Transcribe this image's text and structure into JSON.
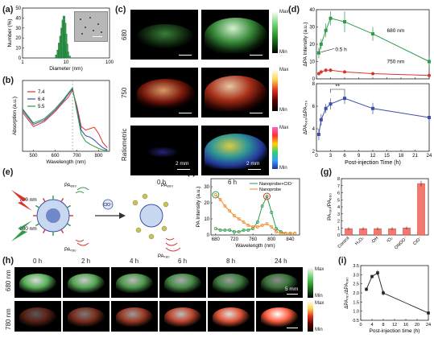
{
  "panels": {
    "a": {
      "letter": "(a)",
      "ylabel": "Number (%)",
      "xlabel": "Diameter (nm)",
      "yticks": [
        "0",
        "10",
        "20",
        "30",
        "40",
        "50"
      ],
      "xticks": [
        "1",
        "10",
        "100"
      ]
    },
    "b": {
      "letter": "(b)",
      "ylabel": "Absorption (a.u.)",
      "xlabel": "Wavelength (nm)",
      "xticks": [
        "500",
        "600",
        "700",
        "800"
      ],
      "legend": [
        "7.4",
        "6.4",
        "5.5"
      ]
    },
    "c": {
      "letter": "(c)",
      "rows": [
        "680",
        "750",
        "Ratiometric"
      ],
      "cols": [
        "0 h",
        "6 h"
      ],
      "scale": "2 mm",
      "max": "Max",
      "min": "Min"
    },
    "d": {
      "letter": "(d)",
      "ylabel_top": "ΔPA Intensity (a.u.)",
      "ylabel_bot": "ΔPA₆₈₀/ΔPA₇₅₀",
      "xlabel": "Post-injection Time (h)",
      "label_680": "680 nm",
      "label_750": "750 nm",
      "label_05": "0.5 h",
      "sig": "**",
      "xticks": [
        "0",
        "3",
        "6",
        "9",
        "12",
        "15",
        "18",
        "21",
        "24"
      ],
      "yticks_top": [
        "0",
        "10",
        "20",
        "30",
        "40"
      ],
      "yticks_bot": [
        "2",
        "4",
        "6",
        "8"
      ]
    },
    "e": {
      "letter": "(e)",
      "l780": "780 nm",
      "l680": "680 nm",
      "pa680_top": "PA₆₈₀",
      "pa780_left": "PA₇₈₀",
      "pa680_bot": "PA₆₈₀",
      "pa780_right": "PA₇₈₀",
      "clo": "ClO⁻"
    },
    "f": {
      "letter": "(f)",
      "ylabel": "PA Intensity (a.u.)",
      "xlabel": "Wavelength (nm)",
      "legend": [
        "Nanoprobe+ClO⁻",
        "Nanoprobe"
      ],
      "xticks": [
        "680",
        "720",
        "760",
        "800",
        "840"
      ],
      "yticks": [
        "0",
        "10",
        "20",
        "30"
      ]
    },
    "g": {
      "letter": "(g)",
      "ylabel": "PA₇₈₀/PA₆₈₀",
      "categories": [
        "Control",
        "H₂O₂",
        "·OH",
        "¹O₂",
        "ONOO⁻",
        "ClO⁻"
      ],
      "yticks": [
        "0",
        "1",
        "2",
        "3",
        "4",
        "5",
        "6",
        "7",
        "8"
      ]
    },
    "h": {
      "letter": "(h)",
      "rows": [
        "680 nm",
        "780 nm"
      ],
      "cols": [
        "0 h",
        "2 h",
        "4 h",
        "6 h",
        "8 h",
        "24 h"
      ],
      "scale": "5 mm",
      "max": "Max",
      "min": "Min"
    },
    "i": {
      "letter": "(i)",
      "ylabel": "ΔPA₇₈₀/ΔPA₆₈₀",
      "xlabel": "Post-injection time (h)",
      "xticks": [
        "0",
        "4",
        "8",
        "12",
        "16",
        "20",
        "24"
      ],
      "yticks": [
        "0.5",
        "1.0",
        "1.5",
        "2.0",
        "2.5",
        "3.0",
        "3.5"
      ]
    }
  },
  "colors": {
    "green": "#2e9a4a",
    "red": "#d9342b",
    "orange": "#f08a24",
    "blue": "#3b4fa8",
    "gray": "#555555"
  },
  "chart_data": [
    {
      "id": "a",
      "type": "bar",
      "categories": [
        6,
        6.5,
        7,
        7.5,
        8,
        8.5,
        9,
        9.5,
        10,
        10.5,
        11,
        12
      ],
      "values": [
        3,
        8,
        15,
        22,
        30,
        38,
        42,
        35,
        24,
        14,
        6,
        2
      ],
      "xlabel": "Diameter (nm)",
      "ylabel": "Number (%)",
      "ylim": [
        0,
        50
      ],
      "xscale": "log",
      "xlim": [
        1,
        100
      ]
    },
    {
      "id": "b",
      "type": "line",
      "xlabel": "Wavelength (nm)",
      "ylabel": "Absorption (a.u.)",
      "xlim": [
        450,
        850
      ],
      "series": [
        {
          "name": "7.4",
          "x": [
            450,
            500,
            550,
            600,
            640,
            660,
            680,
            700,
            720,
            740,
            760,
            780,
            800,
            820,
            840
          ],
          "y": [
            0.55,
            0.35,
            0.42,
            0.56,
            0.7,
            0.76,
            0.86,
            0.64,
            0.35,
            0.3,
            0.32,
            0.34,
            0.25,
            0.12,
            0.05
          ]
        },
        {
          "name": "6.4",
          "x": [
            450,
            500,
            550,
            600,
            640,
            660,
            680,
            700,
            720,
            740,
            760,
            780,
            800,
            820,
            840
          ],
          "y": [
            0.58,
            0.38,
            0.44,
            0.58,
            0.72,
            0.8,
            0.88,
            0.6,
            0.3,
            0.22,
            0.2,
            0.16,
            0.1,
            0.05,
            0.02
          ]
        },
        {
          "name": "5.5",
          "x": [
            450,
            500,
            550,
            600,
            640,
            660,
            680,
            700,
            720,
            740,
            760,
            780,
            800,
            820,
            840
          ],
          "y": [
            0.6,
            0.4,
            0.46,
            0.6,
            0.74,
            0.82,
            0.9,
            0.56,
            0.24,
            0.14,
            0.1,
            0.07,
            0.04,
            0.02,
            0.01
          ]
        }
      ]
    },
    {
      "id": "d_top",
      "type": "scatter",
      "xlabel": "Post-injection Time (h)",
      "ylabel": "ΔPA Intensity (a.u.)",
      "xlim": [
        0,
        24
      ],
      "ylim": [
        0,
        40
      ],
      "series": [
        {
          "name": "680 nm",
          "x": [
            0.5,
            1,
            2,
            3,
            6,
            12,
            24
          ],
          "y": [
            15,
            20,
            28,
            35,
            33,
            26,
            10
          ],
          "err": [
            3,
            3,
            4,
            4,
            6,
            4,
            3
          ]
        },
        {
          "name": "750 nm",
          "x": [
            0.5,
            1,
            2,
            3,
            6,
            12,
            24
          ],
          "y": [
            3,
            4,
            5,
            5,
            4,
            3,
            2
          ],
          "err": [
            1,
            1,
            1,
            1,
            1,
            1,
            1
          ]
        }
      ]
    },
    {
      "id": "d_bot",
      "type": "scatter",
      "xlabel": "Post-injection Time (h)",
      "ylabel": "ΔPA₆₈₀/ΔPA₇₅₀",
      "xlim": [
        0,
        24
      ],
      "ylim": [
        2,
        8
      ],
      "series": [
        {
          "name": "",
          "x": [
            0.5,
            1,
            2,
            3,
            6,
            12,
            24
          ],
          "y": [
            3.5,
            4.8,
            5.8,
            6.2,
            6.7,
            5.8,
            5.0
          ],
          "err": [
            0.5,
            0.5,
            0.4,
            0.5,
            0.5,
            0.5,
            0.5
          ]
        }
      ]
    },
    {
      "id": "f",
      "type": "line",
      "xlabel": "Wavelength (nm)",
      "ylabel": "PA Intensity (a.u.)",
      "xlim": [
        670,
        860
      ],
      "ylim": [
        0,
        35
      ],
      "series": [
        {
          "name": "Nanoprobe+ClO⁻",
          "x": [
            680,
            690,
            700,
            710,
            720,
            730,
            740,
            750,
            760,
            770,
            780,
            790,
            800,
            810,
            820,
            830,
            840,
            850
          ],
          "y": [
            4,
            3,
            3,
            3,
            2,
            2,
            3,
            3,
            4,
            8,
            18,
            24,
            14,
            4,
            2,
            1,
            1,
            1
          ]
        },
        {
          "name": "Nanoprobe",
          "x": [
            680,
            690,
            700,
            710,
            720,
            730,
            740,
            750,
            760,
            770,
            780,
            790,
            800,
            810,
            820,
            830,
            840,
            850
          ],
          "y": [
            25,
            22,
            18,
            15,
            12,
            10,
            8,
            6,
            5,
            5,
            6,
            7,
            5,
            2,
            1,
            1,
            1,
            1
          ]
        }
      ]
    },
    {
      "id": "g",
      "type": "bar",
      "categories": [
        "Control",
        "H₂O₂",
        "·OH",
        "¹O₂",
        "ONOO⁻",
        "ClO⁻"
      ],
      "values": [
        0.9,
        0.9,
        0.9,
        0.9,
        1.0,
        7.3
      ],
      "err": [
        0.2,
        0.2,
        0.2,
        0.2,
        0.2,
        0.4
      ],
      "ylabel": "PA₇₈₀/PA₆₈₀",
      "ylim": [
        0,
        8
      ]
    },
    {
      "id": "i",
      "type": "line",
      "xlabel": "Post-injection time (h)",
      "ylabel": "ΔPA₇₈₀/ΔPA₆₈₀",
      "xlim": [
        0,
        24
      ],
      "ylim": [
        0.5,
        3.5
      ],
      "series": [
        {
          "name": "",
          "x": [
            2,
            4,
            6,
            8,
            24
          ],
          "y": [
            2.2,
            2.9,
            3.1,
            2.0,
            0.9
          ],
          "err": [
            0.1,
            0.1,
            0.15,
            0.15,
            0.1
          ]
        }
      ]
    }
  ]
}
